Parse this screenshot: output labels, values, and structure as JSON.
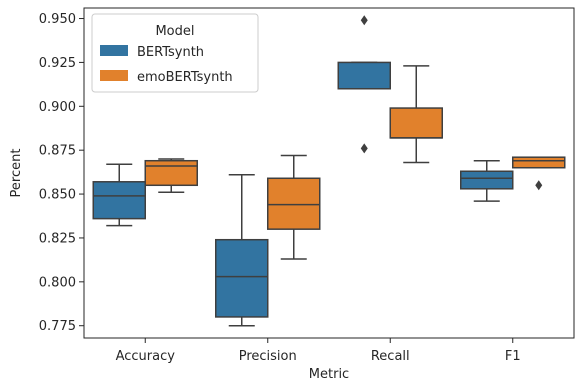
{
  "chart_data": {
    "type": "box",
    "xlabel": "Metric",
    "ylabel": "Percent",
    "categories": [
      "Accuracy",
      "Precision",
      "Recall",
      "F1"
    ],
    "ylim": [
      0.768,
      0.956
    ],
    "yticks": [
      0.775,
      0.8,
      0.825,
      0.85,
      0.875,
      0.9,
      0.925,
      0.95
    ],
    "ytick_labels": [
      "0.775",
      "0.800",
      "0.825",
      "0.850",
      "0.875",
      "0.900",
      "0.925",
      "0.950"
    ],
    "legend": {
      "title": "Model",
      "position": "top-left"
    },
    "series": [
      {
        "name": "BERTsynth",
        "color": "#3274a1",
        "boxes": [
          {
            "whisker_low": 0.832,
            "q1": 0.836,
            "median": 0.849,
            "q3": 0.857,
            "whisker_high": 0.867,
            "outliers": []
          },
          {
            "whisker_low": 0.775,
            "q1": 0.78,
            "median": 0.803,
            "q3": 0.824,
            "whisker_high": 0.861,
            "outliers": []
          },
          {
            "whisker_low": 0.91,
            "q1": 0.91,
            "median": 0.91,
            "q3": 0.925,
            "whisker_high": 0.925,
            "outliers": [
              0.876,
              0.949
            ]
          },
          {
            "whisker_low": 0.846,
            "q1": 0.853,
            "median": 0.859,
            "q3": 0.863,
            "whisker_high": 0.869,
            "outliers": []
          }
        ]
      },
      {
        "name": "emoBERTsynth",
        "color": "#e1812c",
        "boxes": [
          {
            "whisker_low": 0.851,
            "q1": 0.855,
            "median": 0.866,
            "q3": 0.869,
            "whisker_high": 0.87,
            "outliers": []
          },
          {
            "whisker_low": 0.813,
            "q1": 0.83,
            "median": 0.844,
            "q3": 0.859,
            "whisker_high": 0.872,
            "outliers": []
          },
          {
            "whisker_low": 0.868,
            "q1": 0.882,
            "median": 0.882,
            "q3": 0.899,
            "whisker_high": 0.923,
            "outliers": []
          },
          {
            "whisker_low": 0.865,
            "q1": 0.865,
            "median": 0.869,
            "q3": 0.871,
            "whisker_high": 0.871,
            "outliers": [
              0.855
            ]
          }
        ]
      }
    ]
  }
}
